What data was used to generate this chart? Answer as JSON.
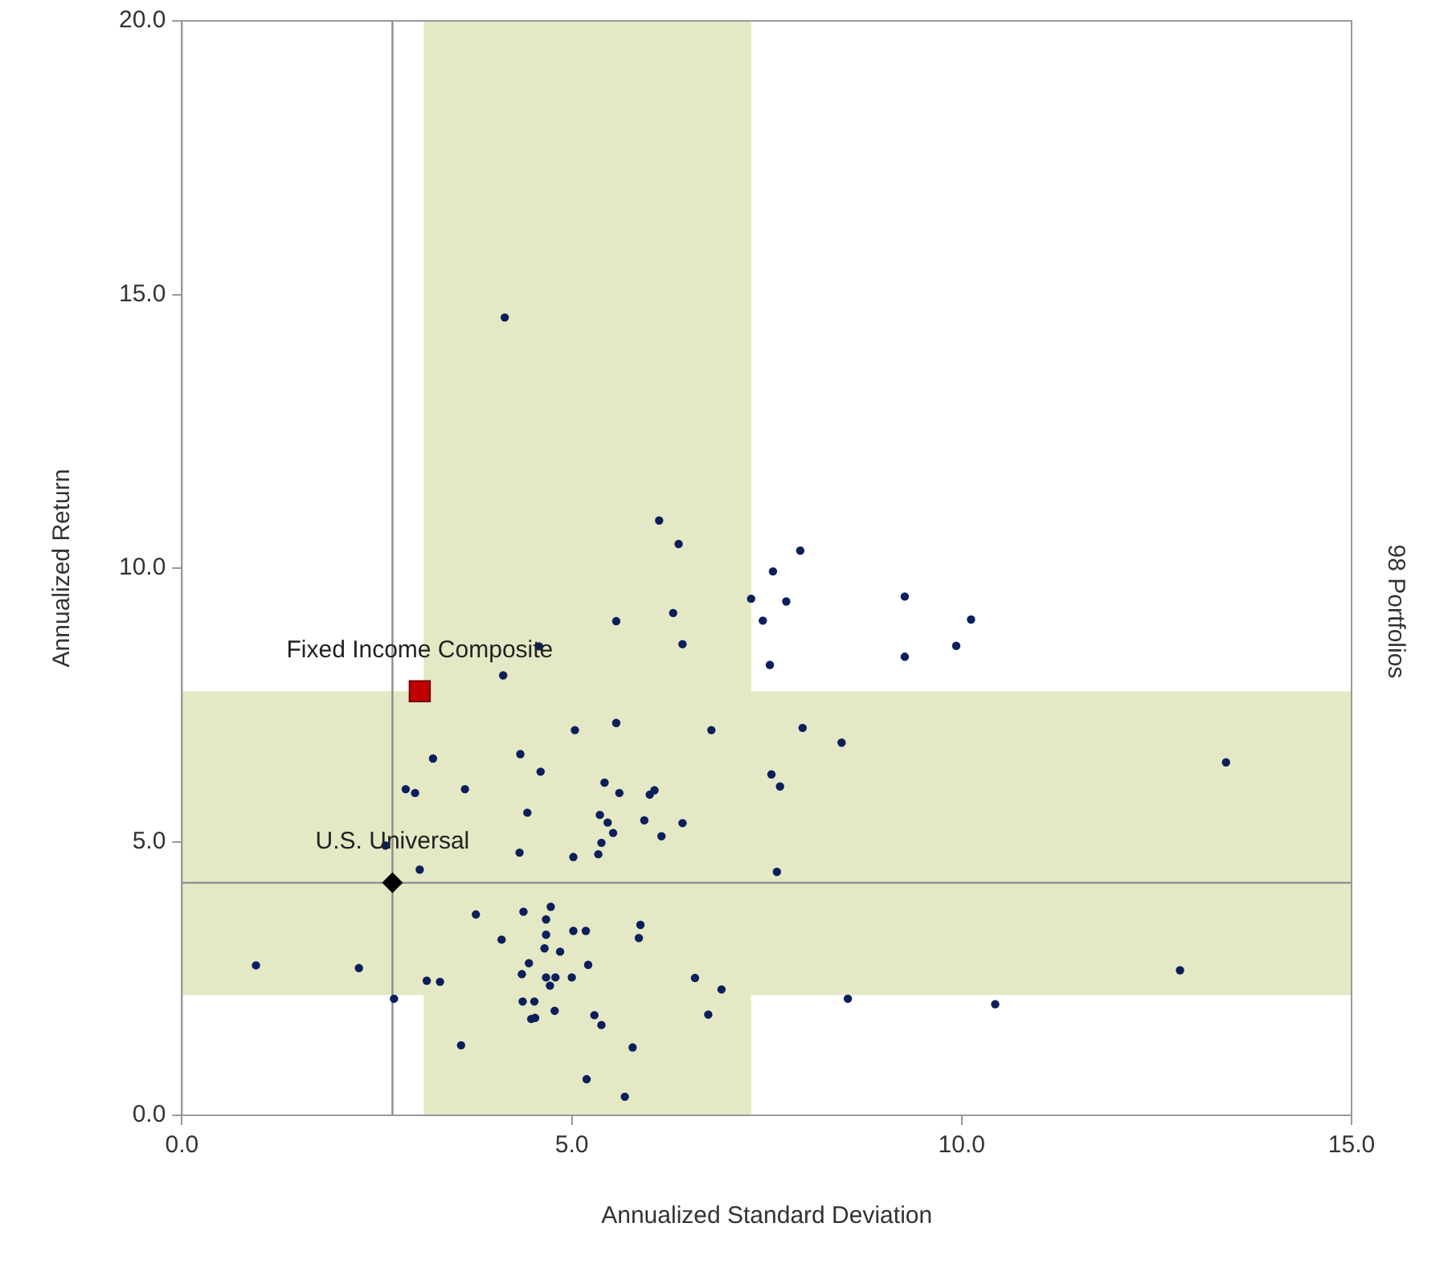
{
  "chart_data": {
    "type": "scatter",
    "xlabel": "Annualized Standard Deviation",
    "ylabel": "Annualized Return",
    "annotations": [
      "98 Portfolios"
    ],
    "xlim": [
      0,
      15
    ],
    "ylim": [
      0,
      20
    ],
    "xticks": [
      {
        "value": 0,
        "label": "0.0"
      },
      {
        "value": 5,
        "label": "5.0"
      },
      {
        "value": 10,
        "label": "10.0"
      },
      {
        "value": 15,
        "label": "15.0"
      }
    ],
    "yticks": [
      {
        "value": 0,
        "label": "0.0"
      },
      {
        "value": 5,
        "label": "5.0"
      },
      {
        "value": 10,
        "label": "10.0"
      },
      {
        "value": 15,
        "label": "15.0"
      },
      {
        "value": 20,
        "label": "20.0"
      }
    ],
    "grid": false,
    "legend": false,
    "marker": "circle",
    "bands": [
      {
        "axis": "x",
        "from": 3.1,
        "to": 7.3,
        "color": "#e5e8c4"
      },
      {
        "axis": "y",
        "from": 2.2,
        "to": 7.75,
        "color": "#e5e8c4"
      }
    ],
    "ref_lines": [
      {
        "axis": "x",
        "value": 2.7,
        "color": "#8c8c8c"
      },
      {
        "axis": "y",
        "value": 4.25,
        "color": "#8c8c8c"
      }
    ],
    "series": [
      {
        "color": "#0a1f5c",
        "x": [
          4.14,
          6.12,
          6.37,
          5.57,
          6.3,
          6.42,
          7.3,
          7.45,
          7.54,
          4.12,
          4.58,
          7.93,
          7.58,
          7.75,
          9.27,
          10.12,
          9.93,
          9.27,
          7.96,
          8.46,
          7.56,
          7.67,
          13.39,
          7.63,
          12.8,
          8.54,
          10.43,
          6.92,
          5.04,
          5.57,
          6.79,
          3.22,
          4.34,
          4.6,
          2.87,
          2.99,
          3.63,
          5.42,
          5.61,
          6.0,
          6.06,
          4.43,
          5.36,
          5.46,
          5.53,
          5.93,
          6.42,
          6.15,
          5.38,
          5.34,
          5.02,
          4.33,
          2.61,
          3.05,
          3.77,
          4.38,
          4.73,
          4.67,
          4.67,
          5.02,
          5.18,
          5.88,
          5.86,
          4.1,
          4.65,
          4.85,
          4.45,
          5.21,
          4.36,
          4.67,
          4.79,
          4.72,
          5.0,
          6.58,
          6.75,
          0.95,
          2.27,
          3.14,
          3.31,
          2.72,
          4.37,
          4.52,
          4.78,
          4.48,
          4.53,
          5.29,
          5.38,
          3.58,
          5.78,
          5.19,
          5.68
        ],
        "values": [
          14.58,
          10.87,
          10.44,
          9.03,
          9.18,
          8.61,
          9.44,
          9.04,
          8.23,
          8.04,
          8.57,
          10.32,
          9.94,
          9.39,
          9.48,
          9.06,
          8.58,
          8.38,
          7.08,
          6.81,
          6.23,
          6.01,
          6.45,
          4.45,
          2.65,
          2.13,
          2.03,
          2.3,
          7.04,
          7.17,
          7.04,
          6.52,
          6.6,
          6.28,
          5.96,
          5.89,
          5.96,
          6.08,
          5.89,
          5.86,
          5.94,
          5.53,
          5.49,
          5.35,
          5.16,
          5.39,
          5.34,
          5.1,
          4.98,
          4.77,
          4.72,
          4.8,
          4.93,
          4.49,
          3.67,
          3.72,
          3.81,
          3.58,
          3.3,
          3.37,
          3.37,
          3.48,
          3.24,
          3.21,
          3.05,
          2.99,
          2.78,
          2.75,
          2.58,
          2.52,
          2.52,
          2.37,
          2.52,
          2.51,
          1.84,
          2.74,
          2.69,
          2.46,
          2.44,
          2.13,
          2.08,
          2.08,
          1.91,
          1.76,
          1.78,
          1.83,
          1.65,
          1.28,
          1.24,
          0.66,
          0.34
        ]
      },
      {
        "name": "Fixed Income Composite",
        "color": "#c00000",
        "marker": "square",
        "x": [
          3.05
        ],
        "values": [
          7.75
        ]
      },
      {
        "name": "U.S. Universal",
        "color": "#000000",
        "marker": "diamond",
        "x": [
          2.7
        ],
        "values": [
          4.25
        ]
      }
    ]
  }
}
